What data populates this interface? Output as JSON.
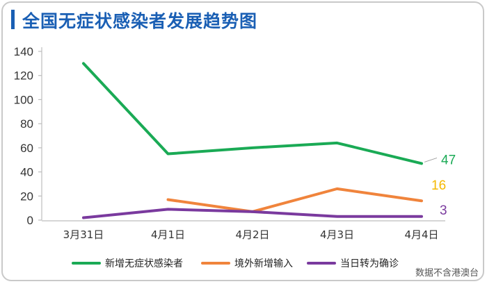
{
  "title": "全国无症状感染者发展趋势图",
  "footnote": "数据不含港澳台",
  "colors": {
    "title": "#1a5fb4",
    "frame": "#c9c9c9"
  },
  "chart_data": {
    "type": "line",
    "title": "全国无症状感染者发展趋势图",
    "xlabel": "",
    "ylabel": "",
    "categories": [
      "3月31日",
      "4月1日",
      "4月2日",
      "4月3日",
      "4月4日"
    ],
    "ylim": [
      0,
      140
    ],
    "yticks": [
      0,
      20,
      40,
      60,
      80,
      100,
      120,
      140
    ],
    "grid": false,
    "legend_position": "bottom",
    "series": [
      {
        "name": "新增无症状感染者",
        "color": "#1aaa55",
        "values": [
          130,
          55,
          60,
          64,
          47
        ],
        "end_label": "47"
      },
      {
        "name": "境外新增输入",
        "color": "#f0843c",
        "values": [
          null,
          17,
          7,
          26,
          16
        ],
        "end_label": "16",
        "label_color": "#f5b800"
      },
      {
        "name": "当日转为确诊",
        "color": "#7a3a9e",
        "values": [
          2,
          9,
          7,
          3,
          3
        ],
        "end_label": "3"
      }
    ]
  }
}
